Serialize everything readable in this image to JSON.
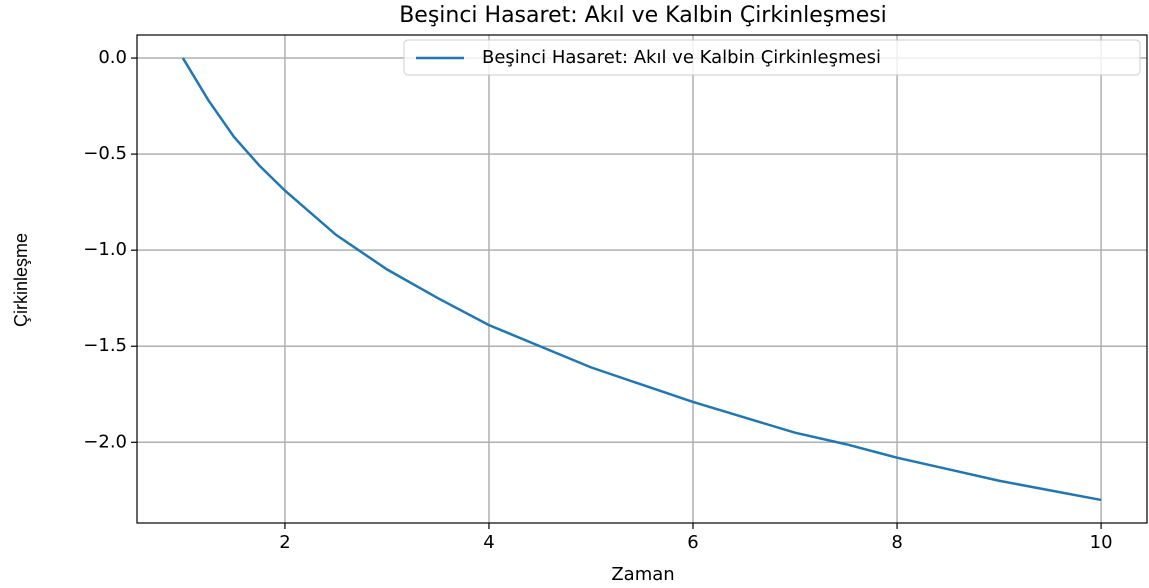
{
  "chart_data": {
    "type": "line",
    "title": "Beşinci Hasaret: Akıl ve Kalbin Çirkinleşmesi",
    "xlabel": "Zaman",
    "ylabel": "Çirkinleşme",
    "x": [
      1,
      1.25,
      1.5,
      1.75,
      2,
      2.5,
      3,
      3.5,
      4,
      4.5,
      5,
      5.5,
      6,
      6.5,
      7,
      7.5,
      8,
      8.5,
      9,
      9.5,
      10
    ],
    "series": [
      {
        "name": "Beşinci Hasaret: Akıl ve Kalbin Çirkinleşmesi",
        "color": "#1f77b4",
        "values": [
          0,
          -0.22,
          -0.41,
          -0.56,
          -0.69,
          -0.92,
          -1.1,
          -1.25,
          -1.39,
          -1.5,
          -1.61,
          -1.7,
          -1.79,
          -1.87,
          -1.95,
          -2.01,
          -2.08,
          -2.14,
          -2.2,
          -2.25,
          -2.3
        ]
      }
    ],
    "xlim": [
      0.55,
      10.45
    ],
    "ylim": [
      -2.42,
      0.12
    ],
    "xticks": [
      2,
      4,
      6,
      8,
      10
    ],
    "yticks": [
      {
        "value": 0,
        "label": "0.0"
      },
      {
        "value": -0.5,
        "label": "−0.5"
      },
      {
        "value": -1,
        "label": "−1.0"
      },
      {
        "value": -1.5,
        "label": "−1.5"
      },
      {
        "value": -2,
        "label": "−2.0"
      }
    ],
    "grid": true,
    "legend": "upper right"
  }
}
